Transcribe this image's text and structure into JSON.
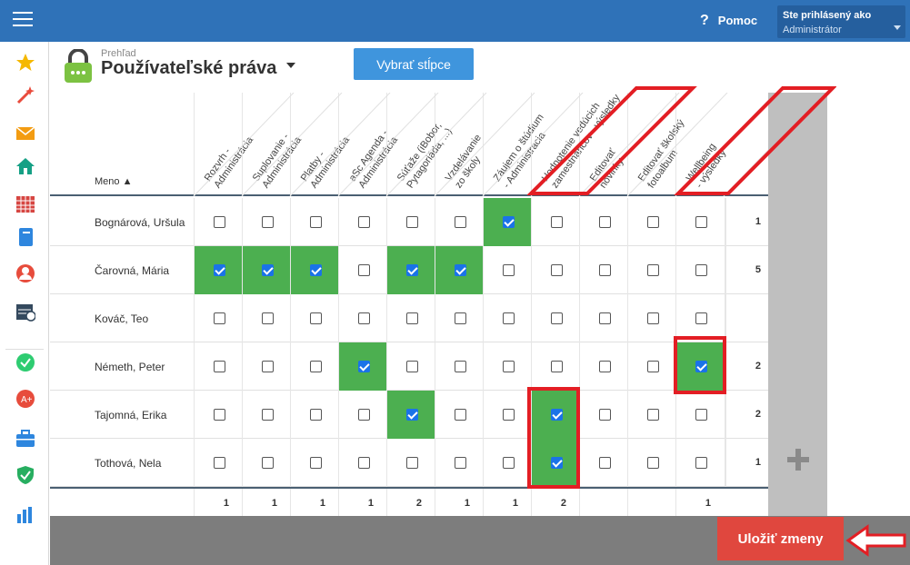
{
  "topbar": {
    "help_label": "Pomoc",
    "help_icon": "?",
    "login_label": "Ste prihlásený ako",
    "login_user": "Administrátor"
  },
  "sidebar": {
    "items": [
      {
        "icon": "star-icon",
        "color": "#f5b800"
      },
      {
        "icon": "magic-wand-icon",
        "color": "#e94b3c"
      },
      {
        "icon": "envelope-icon",
        "color": "#f39c12"
      },
      {
        "icon": "home-icon",
        "color": "#16a085"
      },
      {
        "icon": "timetable-icon",
        "color": "#d64541"
      },
      {
        "icon": "notebook-icon",
        "color": "#2e86de"
      },
      {
        "icon": "user-icon",
        "color": "#e74c3c"
      },
      {
        "icon": "calendar-clock-icon",
        "color": "#34495e"
      },
      {
        "icon": "check-circle-icon",
        "color": "#2ecc71"
      },
      {
        "icon": "grade-icon",
        "color": "#e74c3c"
      },
      {
        "icon": "briefcase-icon",
        "color": "#2e86de"
      },
      {
        "icon": "shield-check-icon",
        "color": "#27ae60"
      },
      {
        "icon": "bar-chart-icon",
        "color": "#2e86de"
      }
    ]
  },
  "header": {
    "subtitle": "Prehľad",
    "title": "Používateľské práva",
    "columns_button": "Vybrať stĺpce"
  },
  "grid": {
    "name_header": "Meno ▲",
    "columns": [
      "Rozvrh -\nAdministrácia",
      "Suplovanie -\nAdministrácia",
      "Platby -\nAdministrácia",
      "aSc Agenda -\nAdministrácia",
      "Súťaže (iBobor,\nPytagoriáda, ...)",
      "Vzdelávanie\nzo školy",
      "Záujem o štúdium\n- Administrácia",
      "Hodnotenie vedúcich\nzamestnancov - výsledky",
      "Editovať\nnovinky",
      "Editovať školský\nfotoalbum",
      "Wellbeing\n- výsledky"
    ],
    "rows": [
      {
        "name": "Bognárová, Uršula",
        "checks": [
          0,
          0,
          0,
          0,
          0,
          0,
          1,
          0,
          0,
          0,
          0
        ],
        "total": "1"
      },
      {
        "name": "Čarovná, Mária",
        "checks": [
          1,
          1,
          1,
          0,
          1,
          1,
          0,
          0,
          0,
          0,
          0
        ],
        "total": "5"
      },
      {
        "name": "Kováč, Teo",
        "checks": [
          0,
          0,
          0,
          0,
          0,
          0,
          0,
          0,
          0,
          0,
          0
        ],
        "total": ""
      },
      {
        "name": "Németh, Peter",
        "checks": [
          0,
          0,
          0,
          1,
          0,
          0,
          0,
          0,
          0,
          0,
          1
        ],
        "total": "2"
      },
      {
        "name": "Tajomná, Erika",
        "checks": [
          0,
          0,
          0,
          0,
          1,
          0,
          0,
          1,
          0,
          0,
          0
        ],
        "total": "2"
      },
      {
        "name": "Tothová, Nela",
        "checks": [
          0,
          0,
          0,
          0,
          0,
          0,
          0,
          1,
          0,
          0,
          0
        ],
        "total": "1"
      }
    ],
    "column_totals": [
      "1",
      "1",
      "1",
      "1",
      "2",
      "1",
      "1",
      "2",
      "",
      "",
      "1"
    ]
  },
  "footer": {
    "save_button": "Uložiť zmeny"
  },
  "colors": {
    "topbar": "#2f72b8",
    "checked_cell": "#4caf50",
    "highlight": "#e31e24",
    "save": "#e0473e"
  }
}
